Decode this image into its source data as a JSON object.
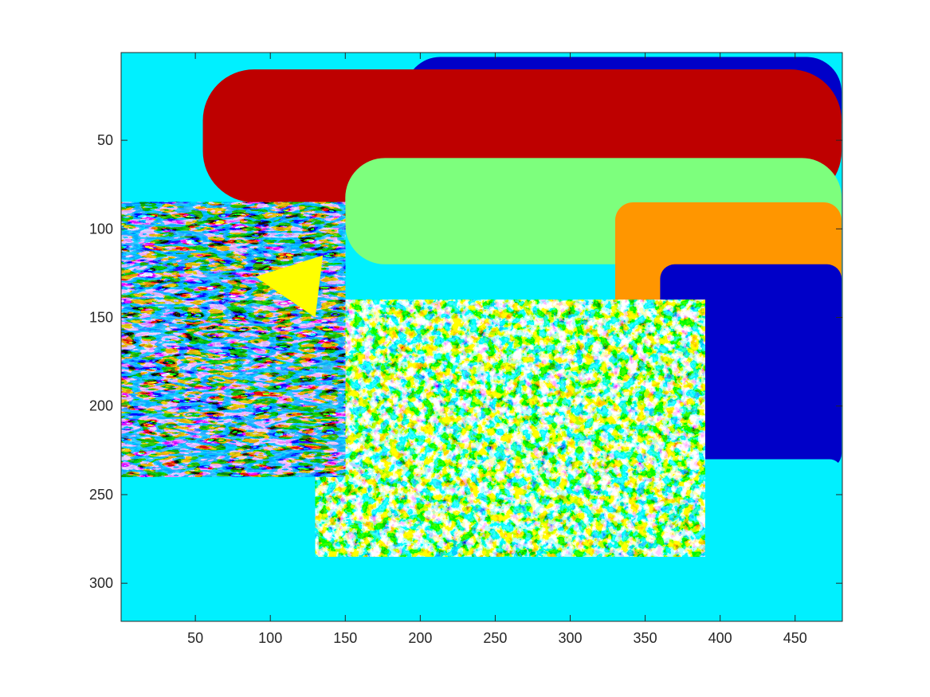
{
  "chart_data": {
    "type": "heatmap",
    "title": "",
    "xlabel": "",
    "ylabel": "",
    "xlim": [
      0.5,
      481.5
    ],
    "ylim": [
      0.5,
      321.5
    ],
    "y_direction": "reversed",
    "grid": false,
    "colormap": "jet",
    "x_ticks": [
      50,
      100,
      150,
      200,
      250,
      300,
      350,
      400,
      450
    ],
    "x_tick_labels": [
      "50",
      "100",
      "150",
      "200",
      "250",
      "300",
      "350",
      "400",
      "450"
    ],
    "y_ticks": [
      50,
      100,
      150,
      200,
      250,
      300
    ],
    "y_tick_labels": [
      "50",
      "100",
      "150",
      "200",
      "250",
      "300"
    ],
    "palette": [
      "#0000c8",
      "#0a64ff",
      "#1ea0ff",
      "#00f0ff",
      "#7dff7d",
      "#ffff00",
      "#ff9600",
      "#ff3c00",
      "#be0000"
    ],
    "regions": [
      {
        "label": "sky-blue-top",
        "color": "#0000c8",
        "x": [
          190,
          481
        ],
        "y": [
          3,
          60
        ]
      },
      {
        "label": "dark-red-band",
        "color": "#be0000",
        "x": [
          55,
          481
        ],
        "y": [
          10,
          85
        ]
      },
      {
        "label": "light-green-band",
        "color": "#7dff7d",
        "x": [
          150,
          481
        ],
        "y": [
          60,
          120
        ]
      },
      {
        "label": "orange-region",
        "color": "#ff9600",
        "x": [
          330,
          481
        ],
        "y": [
          85,
          170
        ]
      },
      {
        "label": "blue-right",
        "color": "#0000c8",
        "x": [
          360,
          481
        ],
        "y": [
          120,
          235
        ]
      },
      {
        "label": "cyan-bottom-right",
        "color": "#00f0ff",
        "x": [
          380,
          481
        ],
        "y": [
          230,
          321
        ]
      },
      {
        "label": "cyan-bottom-left",
        "color": "#00f0ff",
        "x": [
          1,
          150
        ],
        "y": [
          240,
          321
        ]
      },
      {
        "label": "yellow-patch",
        "color": "#ffff00",
        "x": [
          90,
          135
        ],
        "y": [
          115,
          150
        ]
      },
      {
        "label": "textured-fish-body",
        "color": "mixed",
        "x": [
          130,
          390
        ],
        "y": [
          140,
          285
        ]
      }
    ]
  }
}
